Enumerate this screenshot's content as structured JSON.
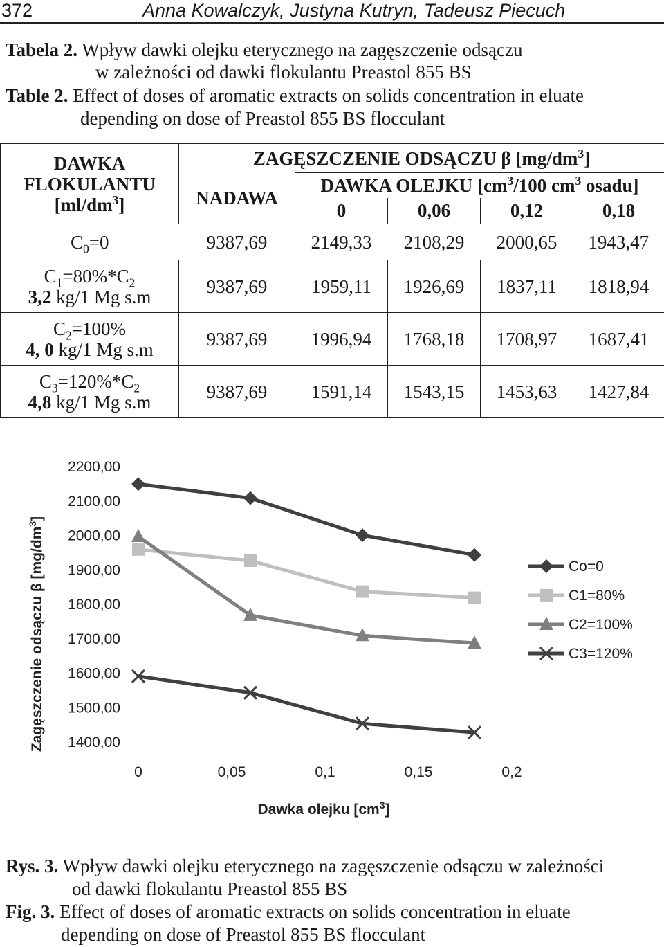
{
  "header": {
    "page_number": "372",
    "authors": "Anna Kowalczyk, Justyna Kutryn, Tadeusz Piecuch"
  },
  "table_caption": {
    "pl_label": "Tabela 2.",
    "pl_line1": "Wpływ dawki olejku eterycznego na zagęszczenie odsączu",
    "pl_line2": "w zależności od dawki flokulantu Preastol 855 BS",
    "en_label": "Table 2.",
    "en_line1": "Effect of doses of aromatic extracts on solids concentration in eluate",
    "en_line2": "depending on dose of Preastol 855 BS flocculant"
  },
  "table": {
    "col_header_dose_1": "DAWKA",
    "col_header_dose_2": "FLOKULANTU",
    "col_header_dose_3a": "[ml/dm",
    "col_header_dose_3sup": "3",
    "col_header_dose_3b": "]",
    "concentration_a": "ZAGĘSZCZENIE ODSĄCZU β [mg/dm",
    "concentration_sup": "3",
    "concentration_b": "]",
    "feed": "NADAWA",
    "oil_dose_a": "DAWKA OLEJKU [cm",
    "oil_dose_sup1": "3",
    "oil_dose_b": "/100 cm",
    "oil_dose_sup2": "3",
    "oil_dose_c": " osadu]",
    "oil_doses": [
      "0",
      "0,06",
      "0,12",
      "0,18"
    ],
    "rows": [
      {
        "label_main": "C",
        "label_sub": "0",
        "label_rest": "=0",
        "values": [
          "9387,69",
          "2149,33",
          "2108,29",
          "2000,65",
          "1943,47"
        ]
      },
      {
        "label_main": "C",
        "label_sub": "1",
        "label_rest": "=80%*C",
        "label_sub2": "2",
        "label_line2_bold": "3,2",
        "label_line2_rest": " kg/1 Mg s.m",
        "values": [
          "9387,69",
          "1959,11",
          "1926,69",
          "1837,11",
          "1818,94"
        ]
      },
      {
        "label_main": "C",
        "label_sub": "2",
        "label_rest": "=100%",
        "label_line2_bold": "4, 0",
        "label_line2_rest": " kg/1 Mg s.m",
        "values": [
          "9387,69",
          "1996,94",
          "1768,18",
          "1708,97",
          "1687,41"
        ]
      },
      {
        "label_main": "C",
        "label_sub": "3",
        "label_rest": "=120%*C",
        "label_sub2": "2",
        "label_line2_bold": "4,8",
        "label_line2_rest": " kg/1 Mg s.m",
        "values": [
          "9387,69",
          "1591,14",
          "1543,15",
          "1453,63",
          "1427,84"
        ]
      }
    ]
  },
  "chart_data": {
    "type": "line",
    "ylabel_a": "Zagęszczenie odsączu β [mg/dm",
    "ylabel_sup": "3",
    "ylabel_b": "]",
    "xlabel_a": "Dawka olejku [cm",
    "xlabel_sup": "3",
    "xlabel_b": "]",
    "ylim": [
      1400,
      2200
    ],
    "xlim": [
      0,
      0.2
    ],
    "y_ticks": [
      "1400,00",
      "1500,00",
      "1600,00",
      "1700,00",
      "1800,00",
      "1900,00",
      "2000,00",
      "2100,00",
      "2200,00"
    ],
    "x_ticks": [
      "0",
      "0,05",
      "0,1",
      "0,15",
      "0,2"
    ],
    "legend_position": "right",
    "grid": false,
    "x": [
      0,
      0.06,
      0.12,
      0.18
    ],
    "series": [
      {
        "name": "Co=0",
        "marker": "diamond",
        "color": "#404040",
        "values": [
          2149.33,
          2108.29,
          2000.65,
          1943.47
        ]
      },
      {
        "name": "C1=80%",
        "marker": "square",
        "color": "#bfbfbf",
        "values": [
          1959.11,
          1926.69,
          1837.11,
          1818.94
        ]
      },
      {
        "name": "C2=100%",
        "marker": "triangle",
        "color": "#7f7f7f",
        "values": [
          1996.94,
          1768.18,
          1708.97,
          1687.41
        ]
      },
      {
        "name": "C3=120%",
        "marker": "x",
        "color": "#404040",
        "values": [
          1591.14,
          1543.15,
          1453.63,
          1427.84
        ]
      }
    ]
  },
  "figure_caption": {
    "pl_label": "Rys. 3.",
    "pl_line1": "Wpływ dawki olejku eterycznego na zagęszczenie odsączu w zależności",
    "pl_line2": "od dawki flokulantu Preastol 855 BS",
    "en_label": "Fig. 3.",
    "en_line1": "Effect of doses of aromatic extracts on solids concentration in eluate",
    "en_line2": "depending on dose of Preastol 855 BS flocculant"
  }
}
